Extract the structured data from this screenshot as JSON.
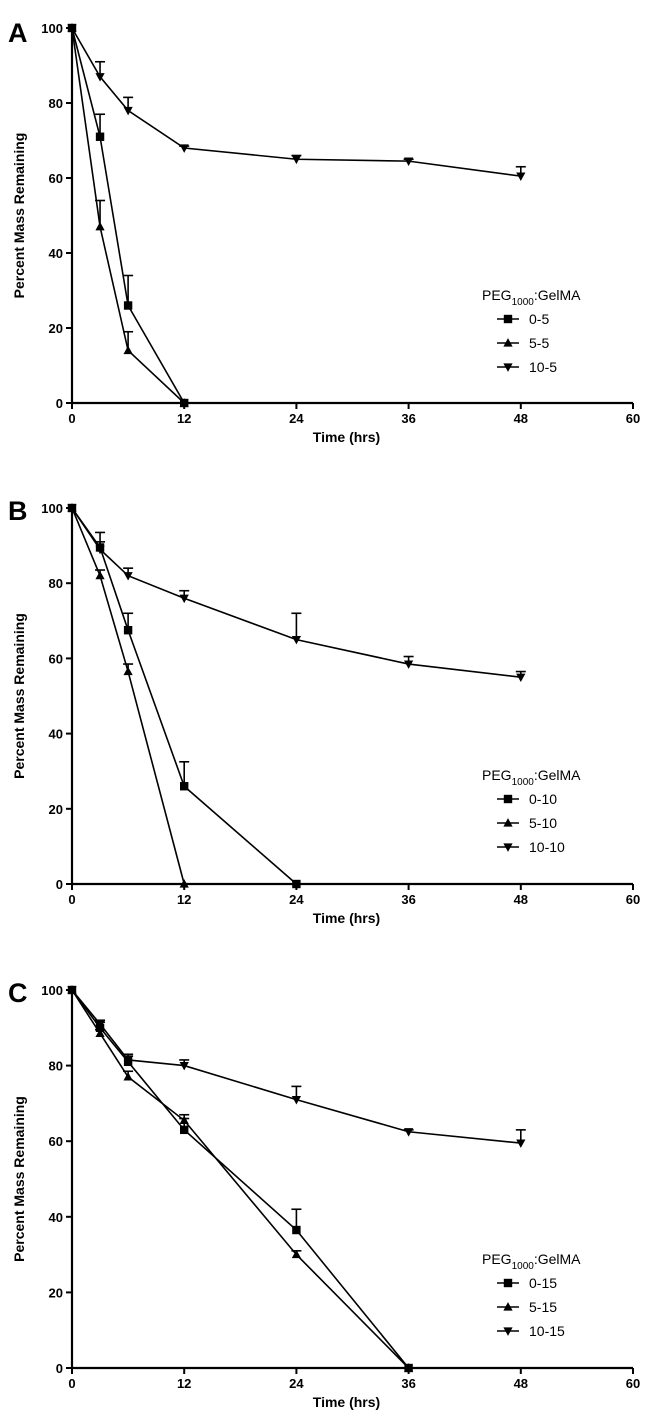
{
  "chart_data": [
    {
      "type": "line",
      "panel_label": "A",
      "xlabel": "Time (hrs)",
      "ylabel": "Percent Mass Remaining",
      "xlim": [
        0,
        60
      ],
      "ylim": [
        0,
        100
      ],
      "xticks": [
        "0",
        "12",
        "24",
        "36",
        "48",
        "60"
      ],
      "yticks": [
        "0",
        "20",
        "40",
        "60",
        "80",
        "100"
      ],
      "grid": false,
      "legend": {
        "title": "PEG1000:GelMA",
        "title_main": "PEG",
        "title_sub": "1000",
        "title_rest": ":GelMA",
        "position": "right"
      },
      "series": [
        {
          "name": "0-5",
          "marker": "square",
          "x": [
            0,
            3,
            6,
            12
          ],
          "y": [
            100,
            71,
            26,
            0
          ],
          "err": [
            0,
            6,
            8,
            0
          ]
        },
        {
          "name": "5-5",
          "marker": "triangle-up",
          "x": [
            0,
            3,
            6,
            12
          ],
          "y": [
            100,
            47,
            14,
            0
          ],
          "err": [
            0,
            7,
            5,
            0
          ]
        },
        {
          "name": "10-5",
          "marker": "triangle-down",
          "x": [
            0,
            3,
            6,
            12,
            24,
            36,
            48
          ],
          "y": [
            100,
            87,
            78,
            68,
            65,
            64.5,
            60.5
          ],
          "err": [
            0,
            4,
            3.5,
            0.5,
            1,
            0.5,
            2.5
          ]
        }
      ]
    },
    {
      "type": "line",
      "panel_label": "B",
      "xlabel": "Time (hrs)",
      "ylabel": "Percent Mass Remaining",
      "xlim": [
        0,
        60
      ],
      "ylim": [
        0,
        100
      ],
      "xticks": [
        "0",
        "12",
        "24",
        "36",
        "48",
        "60"
      ],
      "yticks": [
        "0",
        "20",
        "40",
        "60",
        "80",
        "100"
      ],
      "grid": false,
      "legend": {
        "title": "PEG1000:GelMA",
        "title_main": "PEG",
        "title_sub": "1000",
        "title_rest": ":GelMA",
        "position": "right"
      },
      "series": [
        {
          "name": "0-10",
          "marker": "square",
          "x": [
            0,
            3,
            6,
            12,
            24
          ],
          "y": [
            100,
            89.5,
            67.5,
            26,
            0
          ],
          "err": [
            0,
            4,
            4.5,
            6.5,
            0
          ]
        },
        {
          "name": "5-10",
          "marker": "triangle-up",
          "x": [
            0,
            3,
            6,
            12
          ],
          "y": [
            100,
            82,
            56.5,
            0
          ],
          "err": [
            0,
            1.5,
            2,
            0
          ]
        },
        {
          "name": "10-10",
          "marker": "triangle-down",
          "x": [
            0,
            3,
            6,
            12,
            24,
            36,
            48
          ],
          "y": [
            100,
            89,
            82,
            76,
            65,
            58.5,
            55
          ],
          "err": [
            0,
            2,
            2,
            2,
            7,
            2,
            1.5
          ]
        }
      ]
    },
    {
      "type": "line",
      "panel_label": "C",
      "xlabel": "Time (hrs)",
      "ylabel": "Percent Mass Remaining",
      "xlim": [
        0,
        60
      ],
      "ylim": [
        0,
        100
      ],
      "xticks": [
        "0",
        "12",
        "24",
        "36",
        "48",
        "60"
      ],
      "yticks": [
        "0",
        "20",
        "40",
        "60",
        "80",
        "100"
      ],
      "grid": false,
      "legend": {
        "title": "PEG1000:GelMA",
        "title_main": "PEG",
        "title_sub": "1000",
        "title_rest": ":GelMA",
        "position": "right"
      },
      "series": [
        {
          "name": "0-15",
          "marker": "square",
          "x": [
            0,
            3,
            6,
            12,
            24,
            36
          ],
          "y": [
            100,
            90,
            81,
            63,
            36.5,
            0
          ],
          "err": [
            0,
            1.5,
            2,
            3,
            5.5,
            0
          ]
        },
        {
          "name": "5-15",
          "marker": "triangle-up",
          "x": [
            0,
            3,
            6,
            12,
            24,
            36
          ],
          "y": [
            100,
            88.5,
            77,
            65.5,
            30,
            0
          ],
          "err": [
            0,
            1,
            1.5,
            1.5,
            1,
            0
          ]
        },
        {
          "name": "10-15",
          "marker": "triangle-down",
          "x": [
            0,
            3,
            6,
            12,
            24,
            36,
            48
          ],
          "y": [
            100,
            91,
            81.5,
            80,
            71,
            62.5,
            59.5
          ],
          "err": [
            0,
            1,
            1,
            1.5,
            3.5,
            0.5,
            3.5
          ]
        }
      ]
    }
  ]
}
